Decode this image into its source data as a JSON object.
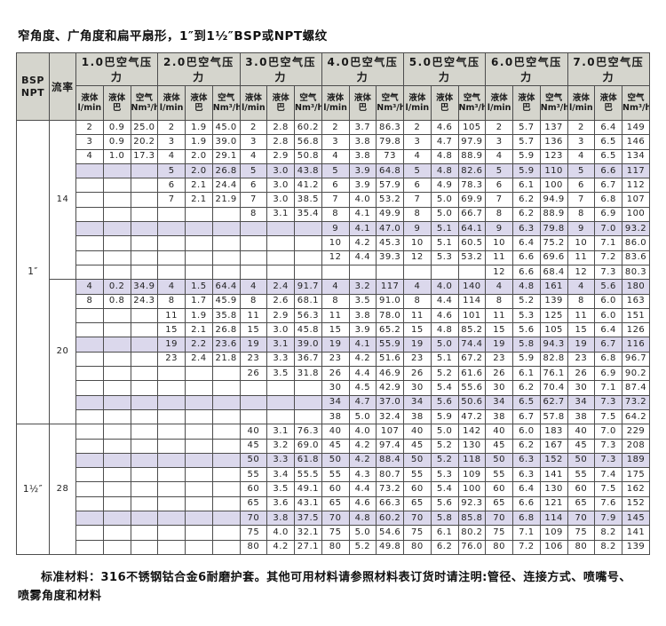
{
  "page": {
    "title": "窄角度、广角度和扁平扇形，1″到1½″BSP或NPT螺纹",
    "note_line1": "标准材料：316不锈钢钴合金6耐磨护套。其他可用材料请参照材料表订货时请注明:管径、连接方式、喷嘴号、",
    "note_line2": "喷雾角度和材料"
  },
  "colors": {
    "header_bg": "#d5d5cd",
    "shaded_row_bg": "#dbd8ec",
    "border": "#4d4d4d"
  },
  "table": {
    "corner_header": "BSP\nNPT",
    "flow_header": "流率",
    "pressure_groups": [
      "1.0巴空气压力",
      "2.0巴空气压力",
      "3.0巴空气压力",
      "4.0巴空气压力",
      "5.0巴空气压力",
      "6.0巴空气压力",
      "7.0巴空气压力"
    ],
    "sub_headers": [
      "液体\nl/min",
      "液体\n巴",
      "空气\nNm³/h"
    ],
    "size_groups": [
      {
        "size": "1″",
        "sections": [
          {
            "flow_rate": "14",
            "rows": [
              [
                "2",
                "0.9",
                "25.0",
                "2",
                "1.9",
                "45.0",
                "2",
                "2.8",
                "60.2",
                "2",
                "3.7",
                "86.3",
                "2",
                "4.6",
                "105",
                "2",
                "5.7",
                "137",
                "2",
                "6.4",
                "149"
              ],
              [
                "3",
                "0.9",
                "20.2",
                "3",
                "1.9",
                "39.0",
                "3",
                "2.8",
                "56.8",
                "3",
                "3.8",
                "79.8",
                "3",
                "4.7",
                "97.9",
                "3",
                "5.7",
                "136",
                "3",
                "6.5",
                "146"
              ],
              [
                "4",
                "1.0",
                "17.3",
                "4",
                "2.0",
                "29.1",
                "4",
                "2.9",
                "50.8",
                "4",
                "3.8",
                "73",
                "4",
                "4.8",
                "88.9",
                "4",
                "5.9",
                "123",
                "4",
                "6.5",
                "134"
              ],
              [
                "",
                "",
                "",
                "5",
                "2.0",
                "26.8",
                "5",
                "3.0",
                "43.8",
                "5",
                "3.9",
                "64.8",
                "5",
                "4.8",
                "82.6",
                "5",
                "5.9",
                "110",
                "5",
                "6.6",
                "117"
              ],
              [
                "",
                "",
                "",
                "6",
                "2.1",
                "24.4",
                "6",
                "3.0",
                "41.2",
                "6",
                "3.9",
                "57.9",
                "6",
                "4.9",
                "78.3",
                "6",
                "6.1",
                "100",
                "6",
                "6.7",
                "112"
              ],
              [
                "",
                "",
                "",
                "7",
                "2.1",
                "21.9",
                "7",
                "3.0",
                "38.5",
                "7",
                "4.0",
                "53.2",
                "7",
                "5.0",
                "69.9",
                "7",
                "6.2",
                "94.9",
                "7",
                "6.8",
                "107"
              ],
              [
                "",
                "",
                "",
                "",
                "",
                "",
                "8",
                "3.1",
                "35.4",
                "8",
                "4.1",
                "49.9",
                "8",
                "5.0",
                "66.7",
                "8",
                "6.2",
                "88.9",
                "8",
                "6.9",
                "100"
              ],
              [
                "",
                "",
                "",
                "",
                "",
                "",
                "",
                "",
                "",
                "9",
                "4.1",
                "47.0",
                "9",
                "5.1",
                "64.1",
                "9",
                "6.3",
                "79.8",
                "9",
                "7.0",
                "93.2"
              ],
              [
                "",
                "",
                "",
                "",
                "",
                "",
                "",
                "",
                "",
                "10",
                "4.2",
                "45.3",
                "10",
                "5.1",
                "60.5",
                "10",
                "6.4",
                "75.2",
                "10",
                "7.1",
                "86.0"
              ],
              [
                "",
                "",
                "",
                "",
                "",
                "",
                "",
                "",
                "",
                "12",
                "4.4",
                "39.3",
                "12",
                "5.3",
                "53.2",
                "11",
                "6.6",
                "69.6",
                "11",
                "7.2",
                "83.6"
              ],
              [
                "",
                "",
                "",
                "",
                "",
                "",
                "",
                "",
                "",
                "",
                "",
                "",
                "",
                "",
                "",
                "12",
                "6.6",
                "68.4",
                "12",
                "7.3",
                "80.3"
              ]
            ]
          },
          {
            "flow_rate": "20",
            "rows": [
              [
                "4",
                "0.2",
                "34.9",
                "4",
                "1.5",
                "64.4",
                "4",
                "2.4",
                "91.7",
                "4",
                "3.2",
                "117",
                "4",
                "4.0",
                "140",
                "4",
                "4.8",
                "161",
                "4",
                "5.6",
                "180"
              ],
              [
                "8",
                "0.8",
                "24.3",
                "8",
                "1.7",
                "45.9",
                "8",
                "2.6",
                "68.1",
                "8",
                "3.5",
                "91.0",
                "8",
                "4.4",
                "114",
                "8",
                "5.2",
                "139",
                "8",
                "6.0",
                "163"
              ],
              [
                "",
                "",
                "",
                "11",
                "1.9",
                "35.8",
                "11",
                "2.9",
                "56.3",
                "11",
                "3.8",
                "78.0",
                "11",
                "4.6",
                "101",
                "11",
                "5.3",
                "125",
                "11",
                "6.0",
                "151"
              ],
              [
                "",
                "",
                "",
                "15",
                "2.1",
                "26.8",
                "15",
                "3.0",
                "45.8",
                "15",
                "3.9",
                "65.2",
                "15",
                "4.8",
                "85.2",
                "15",
                "5.6",
                "105",
                "15",
                "6.4",
                "126"
              ],
              [
                "",
                "",
                "",
                "19",
                "2.2",
                "23.6",
                "19",
                "3.1",
                "39.0",
                "19",
                "4.1",
                "55.9",
                "19",
                "5.0",
                "74.4",
                "19",
                "5.8",
                "94.3",
                "19",
                "6.7",
                "116"
              ],
              [
                "",
                "",
                "",
                "23",
                "2.4",
                "21.8",
                "23",
                "3.3",
                "36.7",
                "23",
                "4.2",
                "51.6",
                "23",
                "5.1",
                "67.2",
                "23",
                "5.9",
                "82.8",
                "23",
                "6.8",
                "96.7"
              ],
              [
                "",
                "",
                "",
                "",
                "",
                "",
                "26",
                "3.5",
                "31.8",
                "26",
                "4.4",
                "46.9",
                "26",
                "5.2",
                "61.6",
                "26",
                "6.1",
                "76.1",
                "26",
                "6.9",
                "90.2"
              ],
              [
                "",
                "",
                "",
                "",
                "",
                "",
                "",
                "",
                "",
                "30",
                "4.5",
                "42.9",
                "30",
                "5.4",
                "55.6",
                "30",
                "6.2",
                "70.4",
                "30",
                "7.1",
                "87.4"
              ],
              [
                "",
                "",
                "",
                "",
                "",
                "",
                "",
                "",
                "",
                "34",
                "4.7",
                "37.0",
                "34",
                "5.6",
                "50.6",
                "34",
                "6.5",
                "62.7",
                "34",
                "7.3",
                "73.2"
              ],
              [
                "",
                "",
                "",
                "",
                "",
                "",
                "",
                "",
                "",
                "38",
                "5.0",
                "32.4",
                "38",
                "5.9",
                "47.2",
                "38",
                "6.7",
                "57.8",
                "38",
                "7.5",
                "64.2"
              ]
            ]
          }
        ]
      },
      {
        "size": "1½″",
        "sections": [
          {
            "flow_rate": "28",
            "rows": [
              [
                "",
                "",
                "",
                "",
                "",
                "",
                "40",
                "3.1",
                "76.3",
                "40",
                "4.0",
                "107",
                "40",
                "5.0",
                "142",
                "40",
                "6.0",
                "183",
                "40",
                "7.0",
                "229"
              ],
              [
                "",
                "",
                "",
                "",
                "",
                "",
                "45",
                "3.2",
                "69.0",
                "45",
                "4.2",
                "97.4",
                "45",
                "5.2",
                "130",
                "45",
                "6.2",
                "167",
                "45",
                "7.3",
                "208"
              ],
              [
                "",
                "",
                "",
                "",
                "",
                "",
                "50",
                "3.3",
                "61.8",
                "50",
                "4.2",
                "88.4",
                "50",
                "5.2",
                "118",
                "50",
                "6.3",
                "152",
                "50",
                "7.3",
                "189"
              ],
              [
                "",
                "",
                "",
                "",
                "",
                "",
                "55",
                "3.4",
                "55.5",
                "55",
                "4.3",
                "80.7",
                "55",
                "5.3",
                "109",
                "55",
                "6.3",
                "141",
                "55",
                "7.4",
                "175"
              ],
              [
                "",
                "",
                "",
                "",
                "",
                "",
                "60",
                "3.5",
                "49.1",
                "60",
                "4.4",
                "73.2",
                "60",
                "5.4",
                "100",
                "60",
                "6.4",
                "130",
                "60",
                "7.5",
                "162"
              ],
              [
                "",
                "",
                "",
                "",
                "",
                "",
                "65",
                "3.6",
                "43.1",
                "65",
                "4.6",
                "66.3",
                "65",
                "5.6",
                "92.3",
                "65",
                "6.6",
                "121",
                "65",
                "7.6",
                "152"
              ],
              [
                "",
                "",
                "",
                "",
                "",
                "",
                "70",
                "3.8",
                "37.5",
                "70",
                "4.8",
                "60.2",
                "70",
                "5.8",
                "85.8",
                "70",
                "6.8",
                "114",
                "70",
                "7.9",
                "145"
              ],
              [
                "",
                "",
                "",
                "",
                "",
                "",
                "75",
                "4.0",
                "32.1",
                "75",
                "5.0",
                "54.6",
                "75",
                "6.1",
                "80.2",
                "75",
                "7.1",
                "109",
                "75",
                "8.2",
                "141"
              ],
              [
                "",
                "",
                "",
                "",
                "",
                "",
                "80",
                "4.2",
                "27.1",
                "80",
                "5.2",
                "49.8",
                "80",
                "6.2",
                "76.0",
                "80",
                "7.2",
                "106",
                "80",
                "8.2",
                "139"
              ]
            ]
          }
        ]
      }
    ]
  }
}
